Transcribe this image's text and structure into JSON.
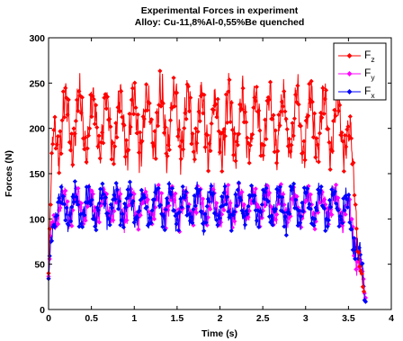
{
  "chart_data": {
    "type": "line",
    "title": "Experimental Forces in experiment",
    "subtitle": "Alloy: Cu-11,8%Al-0,55%Be quenched",
    "xlabel": "Time (s)",
    "ylabel": "Forces (N)",
    "xlim": [
      0,
      4
    ],
    "ylim": [
      0,
      300
    ],
    "xticks": [
      "0",
      "0.5",
      "1",
      "1.5",
      "2",
      "2.5",
      "3",
      "3.5",
      "4"
    ],
    "yticks": [
      "0",
      "50",
      "100",
      "150",
      "200",
      "250",
      "300"
    ],
    "grid": false,
    "legend_position": "top-right",
    "series": [
      {
        "name": "Fz",
        "label_main": "F",
        "label_sub": "z",
        "color": "#ff0000",
        "marker": "diamond",
        "profile_x": [
          0,
          0.03,
          0.06,
          0.1,
          0.2,
          0.5,
          1.0,
          1.5,
          2.0,
          2.5,
          3.0,
          3.4,
          3.48,
          3.53,
          3.58,
          3.63,
          3.68
        ],
        "profile_center": [
          40,
          130,
          185,
          200,
          205,
          205,
          205,
          210,
          205,
          205,
          205,
          205,
          200,
          170,
          120,
          60,
          15
        ],
        "profile_amplitude": [
          10,
          25,
          30,
          38,
          40,
          40,
          40,
          42,
          42,
          40,
          40,
          40,
          35,
          30,
          25,
          15,
          8
        ],
        "peak_value": 268
      },
      {
        "name": "Fy",
        "label_main": "F",
        "label_sub": "y",
        "color": "#ff00ff",
        "marker": "diamond",
        "profile_x": [
          0,
          0.03,
          0.06,
          0.1,
          0.2,
          0.5,
          1.0,
          1.5,
          2.0,
          2.5,
          3.0,
          3.4,
          3.5,
          3.58,
          3.63,
          3.7
        ],
        "profile_center": [
          30,
          80,
          105,
          112,
          113,
          114,
          114,
          114,
          114,
          114,
          114,
          114,
          108,
          80,
          50,
          10
        ],
        "profile_amplitude": [
          8,
          15,
          18,
          20,
          20,
          20,
          20,
          20,
          20,
          20,
          20,
          20,
          20,
          25,
          25,
          10
        ],
        "peak_value": 140
      },
      {
        "name": "Fx",
        "label_main": "F",
        "label_sub": "x",
        "color": "#0000ff",
        "marker": "diamond",
        "profile_x": [
          0,
          0.03,
          0.06,
          0.1,
          0.2,
          0.5,
          1.0,
          1.5,
          2.0,
          2.5,
          3.0,
          3.4,
          3.5,
          3.58,
          3.63,
          3.7
        ],
        "profile_center": [
          30,
          80,
          105,
          112,
          113,
          114,
          114,
          114,
          114,
          114,
          114,
          114,
          108,
          80,
          50,
          10
        ],
        "profile_amplitude": [
          8,
          15,
          20,
          22,
          22,
          22,
          22,
          22,
          22,
          22,
          22,
          22,
          22,
          25,
          25,
          10
        ],
        "peak_value": 142
      }
    ]
  }
}
